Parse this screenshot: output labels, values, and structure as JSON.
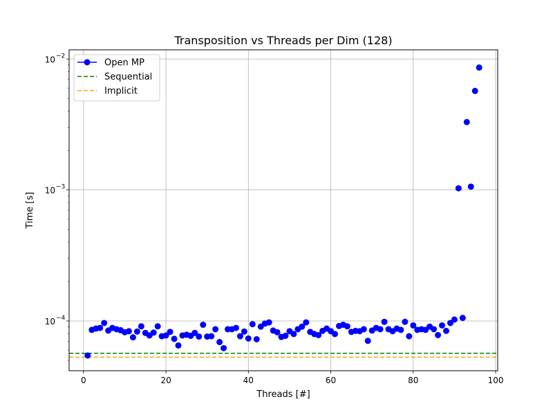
{
  "chart_data": {
    "type": "scatter",
    "title": "Transposition vs Threads per Dim (128)",
    "xlabel": "Threads [#]",
    "ylabel": "Time [s]",
    "xlim": [
      -3.5,
      100.5
    ],
    "ylim_exponents": [
      -4.38,
      -1.93
    ],
    "y_scale": "log",
    "grid": true,
    "legend_position": "upper-left",
    "x_ticks": [
      {
        "value": 0,
        "label": "0"
      },
      {
        "value": 20,
        "label": "20"
      },
      {
        "value": 40,
        "label": "40"
      },
      {
        "value": 60,
        "label": "60"
      },
      {
        "value": 80,
        "label": "80"
      },
      {
        "value": 100,
        "label": "100"
      }
    ],
    "y_ticks": [
      {
        "exponent": -4,
        "base": "10",
        "exp_label": "−4"
      },
      {
        "exponent": -3,
        "base": "10",
        "exp_label": "−3"
      },
      {
        "exponent": -2,
        "base": "10",
        "exp_label": "−2"
      }
    ],
    "series": [
      {
        "name": "Open MP",
        "kind": "markers",
        "color": "#0000ff",
        "x": [
          1,
          2,
          3,
          4,
          5,
          6,
          7,
          8,
          9,
          10,
          11,
          12,
          13,
          14,
          15,
          16,
          17,
          18,
          19,
          20,
          21,
          22,
          23,
          24,
          25,
          26,
          27,
          28,
          29,
          30,
          31,
          32,
          33,
          34,
          35,
          36,
          37,
          38,
          39,
          40,
          41,
          42,
          43,
          44,
          45,
          46,
          47,
          48,
          49,
          50,
          51,
          52,
          53,
          54,
          55,
          56,
          57,
          58,
          59,
          60,
          61,
          62,
          63,
          64,
          65,
          66,
          67,
          68,
          69,
          70,
          71,
          72,
          73,
          74,
          75,
          76,
          77,
          78,
          79,
          80,
          81,
          82,
          83,
          84,
          85,
          86,
          87,
          88,
          89,
          90,
          91,
          92,
          93,
          94,
          95,
          96
        ],
        "y": [
          5.45e-05,
          8.55e-05,
          8.75e-05,
          8.85e-05,
          9.65e-05,
          8.45e-05,
          8.85e-05,
          8.65e-05,
          8.5e-05,
          8.2e-05,
          8.35e-05,
          7.5e-05,
          8.3e-05,
          9.1e-05,
          8.1e-05,
          7.75e-05,
          8.15e-05,
          9.1e-05,
          7.65e-05,
          7.75e-05,
          8.25e-05,
          7.3e-05,
          6.5e-05,
          7.75e-05,
          7.85e-05,
          7.7e-05,
          8.1e-05,
          7.6e-05,
          9.35e-05,
          7.6e-05,
          7.65e-05,
          8.65e-05,
          6.9e-05,
          6.2e-05,
          8.65e-05,
          8.65e-05,
          8.85e-05,
          7.65e-05,
          8.3e-05,
          7.35e-05,
          9.45e-05,
          7.25e-05,
          9.05e-05,
          9.55e-05,
          9.75e-05,
          8.45e-05,
          8.2e-05,
          7.55e-05,
          7.7e-05,
          8.35e-05,
          7.95e-05,
          8.65e-05,
          9.05e-05,
          9.75e-05,
          8.25e-05,
          7.95e-05,
          7.8e-05,
          8.4e-05,
          8.75e-05,
          8.35e-05,
          7.95e-05,
          9.15e-05,
          9.35e-05,
          9.1e-05,
          8.25e-05,
          8.4e-05,
          8.35e-05,
          8.65e-05,
          7.05e-05,
          8.45e-05,
          8.85e-05,
          8.65e-05,
          9.85e-05,
          8.65e-05,
          8.35e-05,
          8.75e-05,
          8.55e-05,
          9.85e-05,
          7.65e-05,
          9.25e-05,
          8.55e-05,
          8.65e-05,
          8.55e-05,
          9.05e-05,
          8.65e-05,
          7.8e-05,
          9.25e-05,
          8.4e-05,
          9.65e-05,
          0.0001025,
          0.00103,
          0.0001055,
          0.0033,
          0.00106,
          0.0057,
          0.0086
        ]
      },
      {
        "name": "Sequential",
        "kind": "hline",
        "color": "#008000",
        "y": 5.67e-05
      },
      {
        "name": "Implicit",
        "kind": "hline",
        "color": "#ffa500",
        "y": 5.29e-05
      }
    ]
  }
}
